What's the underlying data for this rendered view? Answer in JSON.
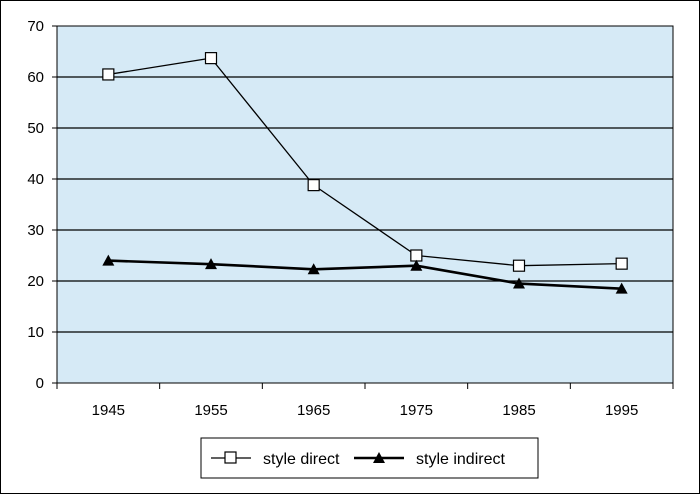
{
  "chart_data": {
    "type": "line",
    "title": "",
    "xlabel": "",
    "ylabel": "",
    "categories": [
      "1945",
      "1955",
      "1965",
      "1975",
      "1985",
      "1995"
    ],
    "ylim": [
      0,
      70
    ],
    "yticks": [
      "0",
      "10",
      "20",
      "30",
      "40",
      "50",
      "60",
      "70"
    ],
    "grid": true,
    "legend_position": "bottom",
    "plot_background": "#d6eaf6",
    "series": [
      {
        "name": "style direct",
        "marker": "open-square",
        "values": [
          60.5,
          63.7,
          38.8,
          25.0,
          23.0,
          23.4
        ]
      },
      {
        "name": "style indirect",
        "marker": "filled-triangle",
        "values": [
          24.0,
          23.3,
          22.3,
          23.0,
          19.5,
          18.5
        ]
      }
    ]
  }
}
